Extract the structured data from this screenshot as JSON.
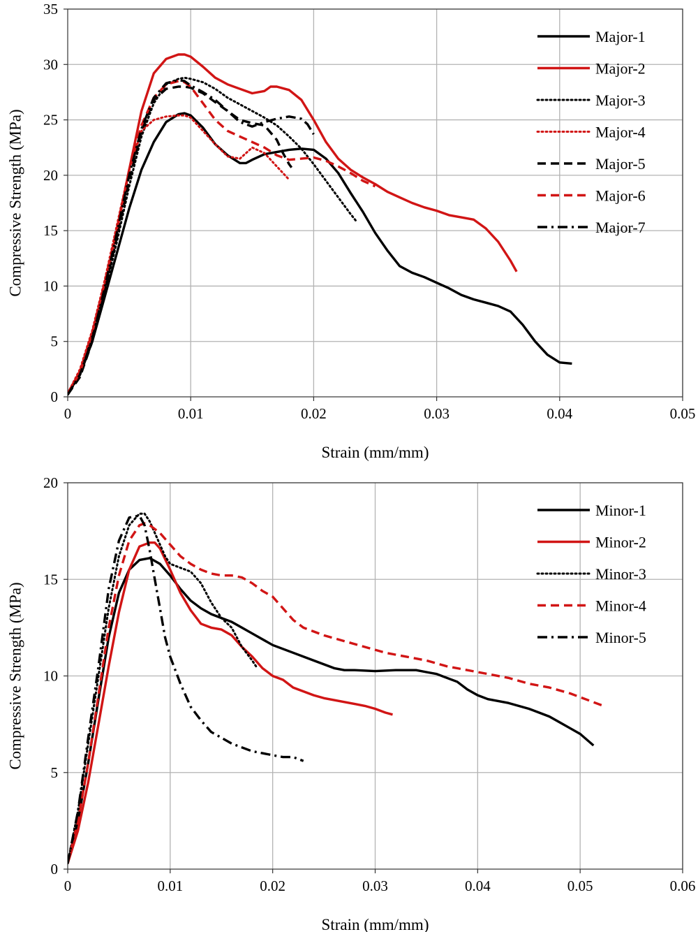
{
  "chart_data": [
    {
      "type": "line",
      "title": "",
      "xlabel": "Strain (mm/mm)",
      "ylabel": "Compressive Strength (MPa)",
      "xlim": [
        0,
        0.05
      ],
      "ylim": [
        0,
        35
      ],
      "xticks": [
        0,
        0.01,
        0.02,
        0.03,
        0.04,
        0.05
      ],
      "xtick_labels": [
        "0",
        "0.01",
        "0.02",
        "0.03",
        "0.04",
        "0.05"
      ],
      "yticks": [
        0,
        5,
        10,
        15,
        20,
        25,
        30,
        35
      ],
      "ytick_labels": [
        "0",
        "5",
        "10",
        "15",
        "20",
        "25",
        "30",
        "35"
      ],
      "grid": true,
      "legend_position": "top-right",
      "series": [
        {
          "name": "Major-1",
          "color": "#000000",
          "style": "solid",
          "x": [
            0,
            0.001,
            0.002,
            0.003,
            0.004,
            0.005,
            0.006,
            0.007,
            0.008,
            0.009,
            0.0095,
            0.01,
            0.011,
            0.012,
            0.013,
            0.014,
            0.0145,
            0.015,
            0.016,
            0.017,
            0.018,
            0.019,
            0.02,
            0.021,
            0.022,
            0.023,
            0.024,
            0.025,
            0.026,
            0.027,
            0.028,
            0.029,
            0.03,
            0.031,
            0.032,
            0.033,
            0.034,
            0.035,
            0.036,
            0.037,
            0.038,
            0.039,
            0.04,
            0.041
          ],
          "y": [
            0.3,
            2,
            5,
            9,
            13,
            17,
            20.5,
            23,
            24.8,
            25.5,
            25.6,
            25.4,
            24.3,
            22.8,
            21.8,
            21.1,
            21.1,
            21.4,
            21.9,
            22.1,
            22.3,
            22.4,
            22.3,
            21.5,
            20.2,
            18.4,
            16.7,
            14.8,
            13.2,
            11.8,
            11.2,
            10.8,
            10.3,
            9.8,
            9.2,
            8.8,
            8.5,
            8.2,
            7.7,
            6.5,
            5.0,
            3.8,
            3.1,
            3.0
          ]
        },
        {
          "name": "Major-2",
          "color": "#d11515",
          "style": "solid",
          "x": [
            0,
            0.001,
            0.002,
            0.003,
            0.004,
            0.005,
            0.006,
            0.007,
            0.008,
            0.009,
            0.0095,
            0.01,
            0.011,
            0.012,
            0.013,
            0.014,
            0.015,
            0.016,
            0.0165,
            0.017,
            0.018,
            0.019,
            0.02,
            0.021,
            0.022,
            0.023,
            0.024,
            0.025,
            0.026,
            0.027,
            0.028,
            0.029,
            0.03,
            0.031,
            0.032,
            0.033,
            0.034,
            0.035,
            0.036,
            0.0365
          ],
          "y": [
            0.3,
            2.3,
            5.8,
            10,
            15,
            20.5,
            25.8,
            29.2,
            30.5,
            30.9,
            30.9,
            30.7,
            29.8,
            28.8,
            28.2,
            27.8,
            27.4,
            27.6,
            28.0,
            28.0,
            27.7,
            26.8,
            25.0,
            23.0,
            21.5,
            20.5,
            19.8,
            19.2,
            18.5,
            18.0,
            17.5,
            17.1,
            16.8,
            16.4,
            16.2,
            16.0,
            15.2,
            14.0,
            12.3,
            11.3
          ]
        },
        {
          "name": "Major-3",
          "color": "#000000",
          "style": "dotted",
          "x": [
            0,
            0.001,
            0.002,
            0.003,
            0.004,
            0.005,
            0.006,
            0.007,
            0.008,
            0.009,
            0.0095,
            0.01,
            0.011,
            0.012,
            0.013,
            0.014,
            0.015,
            0.016,
            0.017,
            0.018,
            0.019,
            0.02,
            0.021,
            0.022,
            0.023,
            0.0235
          ],
          "y": [
            0.2,
            2,
            5.5,
            9.5,
            14,
            19,
            23.5,
            26.5,
            28.2,
            28.7,
            28.8,
            28.7,
            28.4,
            27.8,
            27.0,
            26.4,
            25.8,
            25.2,
            24.5,
            23.5,
            22.4,
            21.0,
            19.5,
            18.0,
            16.5,
            15.8
          ]
        },
        {
          "name": "Major-4",
          "color": "#d11515",
          "style": "dotted",
          "x": [
            0,
            0.001,
            0.002,
            0.003,
            0.004,
            0.005,
            0.006,
            0.007,
            0.008,
            0.009,
            0.0095,
            0.01,
            0.011,
            0.012,
            0.013,
            0.014,
            0.015,
            0.016,
            0.017,
            0.0175,
            0.018
          ],
          "y": [
            0.3,
            2.5,
            6,
            10.5,
            15.5,
            20.5,
            24,
            25,
            25.3,
            25.4,
            25.4,
            25.2,
            24.0,
            22.8,
            21.7,
            21.5,
            22.5,
            22.0,
            20.8,
            20.2,
            19.6
          ]
        },
        {
          "name": "Major-5",
          "color": "#000000",
          "style": "dashed",
          "x": [
            0,
            0.001,
            0.002,
            0.003,
            0.004,
            0.005,
            0.006,
            0.007,
            0.008,
            0.009,
            0.0095,
            0.01,
            0.011,
            0.012,
            0.013,
            0.014,
            0.015,
            0.016,
            0.017,
            0.0175,
            0.018,
            0.0182
          ],
          "y": [
            0.2,
            1.8,
            5,
            9.5,
            14.5,
            19.5,
            24,
            26.8,
            27.8,
            28.0,
            28.0,
            27.9,
            27.4,
            26.6,
            25.8,
            25.0,
            24.7,
            24.5,
            23.2,
            22.0,
            21.0,
            20.7
          ]
        },
        {
          "name": "Major-6",
          "color": "#d11515",
          "style": "dashed",
          "x": [
            0,
            0.001,
            0.002,
            0.003,
            0.004,
            0.005,
            0.006,
            0.007,
            0.008,
            0.009,
            0.0095,
            0.01,
            0.011,
            0.012,
            0.013,
            0.014,
            0.015,
            0.016,
            0.017,
            0.018,
            0.019,
            0.02,
            0.021,
            0.022,
            0.023,
            0.024,
            0.025
          ],
          "y": [
            0.3,
            2.2,
            5.8,
            10.3,
            15.2,
            20.5,
            24.5,
            27,
            28.2,
            28.5,
            28.4,
            28.0,
            26.5,
            25.0,
            24.0,
            23.5,
            23.0,
            22.5,
            21.8,
            21.4,
            21.5,
            21.6,
            21.3,
            20.8,
            20.2,
            19.5,
            19.0
          ]
        },
        {
          "name": "Major-7",
          "color": "#000000",
          "style": "dashdot",
          "x": [
            0,
            0.001,
            0.002,
            0.003,
            0.004,
            0.005,
            0.006,
            0.007,
            0.008,
            0.009,
            0.0095,
            0.01,
            0.011,
            0.012,
            0.013,
            0.014,
            0.015,
            0.016,
            0.017,
            0.018,
            0.019,
            0.0195,
            0.02
          ],
          "y": [
            0.2,
            2,
            5.2,
            9.8,
            14.8,
            20,
            24.2,
            27,
            28.3,
            28.6,
            28.5,
            28.1,
            27.5,
            26.8,
            25.8,
            24.8,
            24.4,
            24.8,
            25.1,
            25.3,
            25.1,
            24.6,
            23.7
          ]
        }
      ]
    },
    {
      "type": "line",
      "title": "",
      "xlabel": "Strain (mm/mm)",
      "ylabel": "Compressive Strength (MPa)",
      "xlim": [
        0,
        0.06
      ],
      "ylim": [
        0,
        20
      ],
      "xticks": [
        0,
        0.01,
        0.02,
        0.03,
        0.04,
        0.05,
        0.06
      ],
      "xtick_labels": [
        "0",
        "0.01",
        "0.02",
        "0.03",
        "0.04",
        "0.05",
        "0.06"
      ],
      "yticks": [
        0,
        5,
        10,
        15,
        20
      ],
      "ytick_labels": [
        "0",
        "5",
        "10",
        "15",
        "20"
      ],
      "grid": true,
      "legend_position": "top-right",
      "series": [
        {
          "name": "Minor-1",
          "color": "#000000",
          "style": "solid",
          "x": [
            0,
            0.001,
            0.002,
            0.003,
            0.004,
            0.005,
            0.006,
            0.007,
            0.008,
            0.009,
            0.01,
            0.011,
            0.012,
            0.013,
            0.014,
            0.015,
            0.016,
            0.017,
            0.018,
            0.019,
            0.02,
            0.022,
            0.024,
            0.026,
            0.027,
            0.028,
            0.03,
            0.032,
            0.033,
            0.034,
            0.035,
            0.036,
            0.037,
            0.038,
            0.039,
            0.04,
            0.041,
            0.042,
            0.043,
            0.044,
            0.045,
            0.046,
            0.047,
            0.048,
            0.049,
            0.05,
            0.0513
          ],
          "y": [
            0.3,
            2.5,
            5.5,
            8.8,
            12,
            14.3,
            15.5,
            16.0,
            16.1,
            15.8,
            15.2,
            14.5,
            13.9,
            13.5,
            13.2,
            13.0,
            12.8,
            12.5,
            12.2,
            11.9,
            11.6,
            11.2,
            10.8,
            10.4,
            10.3,
            10.3,
            10.25,
            10.3,
            10.3,
            10.3,
            10.2,
            10.1,
            9.9,
            9.7,
            9.3,
            9.0,
            8.8,
            8.7,
            8.6,
            8.45,
            8.3,
            8.1,
            7.9,
            7.6,
            7.3,
            7.0,
            6.4
          ]
        },
        {
          "name": "Minor-2",
          "color": "#d11515",
          "style": "solid",
          "x": [
            0,
            0.001,
            0.002,
            0.003,
            0.004,
            0.005,
            0.006,
            0.007,
            0.008,
            0.0085,
            0.009,
            0.01,
            0.011,
            0.012,
            0.013,
            0.014,
            0.015,
            0.016,
            0.017,
            0.018,
            0.019,
            0.02,
            0.021,
            0.022,
            0.023,
            0.024,
            0.025,
            0.026,
            0.027,
            0.028,
            0.029,
            0.03,
            0.031,
            0.0317
          ],
          "y": [
            0.3,
            2,
            4.5,
            7.5,
            10.5,
            13.3,
            15.5,
            16.7,
            16.9,
            16.9,
            16.6,
            15.5,
            14.3,
            13.4,
            12.7,
            12.5,
            12.4,
            12.1,
            11.5,
            11.0,
            10.4,
            10.0,
            9.8,
            9.4,
            9.2,
            9.0,
            8.85,
            8.75,
            8.65,
            8.55,
            8.45,
            8.3,
            8.1,
            8.0
          ]
        },
        {
          "name": "Minor-3",
          "color": "#000000",
          "style": "dotted",
          "x": [
            0,
            0.001,
            0.002,
            0.003,
            0.004,
            0.005,
            0.006,
            0.007,
            0.0075,
            0.008,
            0.009,
            0.0095,
            0.01,
            0.011,
            0.012,
            0.013,
            0.014,
            0.015,
            0.016,
            0.017,
            0.018,
            0.0185
          ],
          "y": [
            0.3,
            3,
            6.5,
            10,
            13.5,
            16.2,
            17.8,
            18.4,
            18.4,
            18.0,
            16.8,
            16.2,
            15.8,
            15.6,
            15.4,
            14.8,
            13.8,
            13.0,
            12.5,
            11.5,
            10.8,
            10.4
          ]
        },
        {
          "name": "Minor-4",
          "color": "#d11515",
          "style": "dashed",
          "x": [
            0,
            0.001,
            0.002,
            0.003,
            0.004,
            0.005,
            0.006,
            0.007,
            0.0075,
            0.008,
            0.009,
            0.01,
            0.011,
            0.012,
            0.013,
            0.014,
            0.015,
            0.016,
            0.017,
            0.018,
            0.019,
            0.02,
            0.021,
            0.022,
            0.023,
            0.024,
            0.025,
            0.027,
            0.029,
            0.031,
            0.033,
            0.035,
            0.037,
            0.039,
            0.041,
            0.043,
            0.045,
            0.047,
            0.049,
            0.051,
            0.0525
          ],
          "y": [
            0.3,
            2.5,
            5.5,
            9,
            12.5,
            15.2,
            17.0,
            17.8,
            17.9,
            17.8,
            17.4,
            16.8,
            16.2,
            15.8,
            15.5,
            15.3,
            15.2,
            15.2,
            15.1,
            14.8,
            14.4,
            14.1,
            13.5,
            12.9,
            12.5,
            12.3,
            12.1,
            11.8,
            11.5,
            11.2,
            11.0,
            10.8,
            10.5,
            10.3,
            10.1,
            9.9,
            9.6,
            9.4,
            9.1,
            8.7,
            8.4
          ]
        },
        {
          "name": "Minor-5",
          "color": "#000000",
          "style": "dashdot",
          "x": [
            0,
            0.001,
            0.002,
            0.003,
            0.004,
            0.005,
            0.006,
            0.007,
            0.0075,
            0.008,
            0.0085,
            0.009,
            0.0095,
            0.01,
            0.011,
            0.012,
            0.013,
            0.014,
            0.015,
            0.016,
            0.017,
            0.018,
            0.019,
            0.02,
            0.021,
            0.022,
            0.023
          ],
          "y": [
            0.3,
            3,
            6.8,
            10.5,
            14.5,
            17.0,
            18.2,
            18.3,
            17.8,
            16.5,
            15.0,
            13.5,
            12.0,
            11.0,
            9.6,
            8.4,
            7.7,
            7.1,
            6.8,
            6.5,
            6.3,
            6.1,
            6.0,
            5.9,
            5.8,
            5.8,
            5.6
          ]
        }
      ]
    }
  ]
}
